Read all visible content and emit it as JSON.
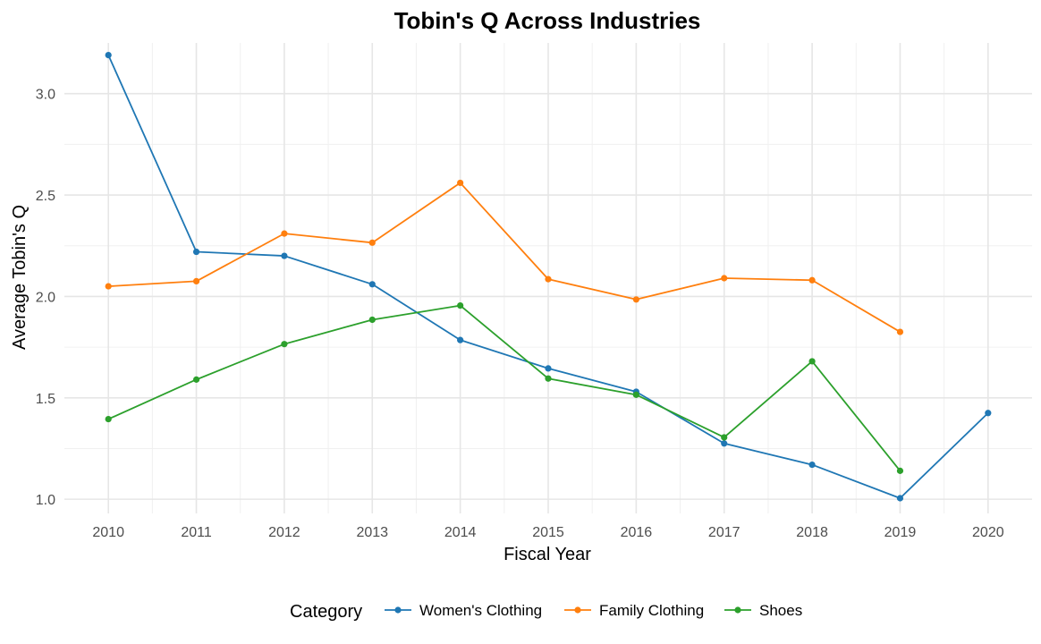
{
  "chart_data": {
    "type": "line",
    "title": "Tobin's Q Across Industries",
    "xlabel": "Fiscal Year",
    "ylabel": "Average Tobin's Q",
    "x": [
      2010,
      2011,
      2012,
      2013,
      2014,
      2015,
      2016,
      2017,
      2018,
      2019,
      2020
    ],
    "x_tick_labels": [
      "2010",
      "2011",
      "2012",
      "2013",
      "2014",
      "2015",
      "2016",
      "2017",
      "2018",
      "2019",
      "2020"
    ],
    "y_ticks": [
      1.0,
      1.5,
      2.0,
      2.5,
      3.0
    ],
    "y_tick_labels": [
      "1.0",
      "1.5",
      "2.0",
      "2.5",
      "3.0"
    ],
    "xlim": [
      2009.5,
      2020.5
    ],
    "ylim": [
      0.93,
      3.25
    ],
    "grid": true,
    "legend_title": "Category",
    "legend_position": "bottom",
    "series": [
      {
        "name": "Women's Clothing",
        "color": "#1f77b4",
        "values": [
          3.19,
          2.22,
          2.2,
          2.06,
          1.785,
          1.645,
          1.53,
          1.275,
          1.17,
          1.005,
          1.425
        ]
      },
      {
        "name": "Family Clothing",
        "color": "#ff7f0e",
        "values": [
          2.05,
          2.075,
          2.31,
          2.265,
          2.56,
          2.085,
          1.985,
          2.09,
          2.08,
          1.825,
          null
        ]
      },
      {
        "name": "Shoes",
        "color": "#2ca02c",
        "values": [
          1.395,
          1.59,
          1.765,
          1.885,
          1.955,
          1.595,
          1.515,
          1.305,
          1.68,
          1.14,
          null
        ]
      }
    ]
  }
}
